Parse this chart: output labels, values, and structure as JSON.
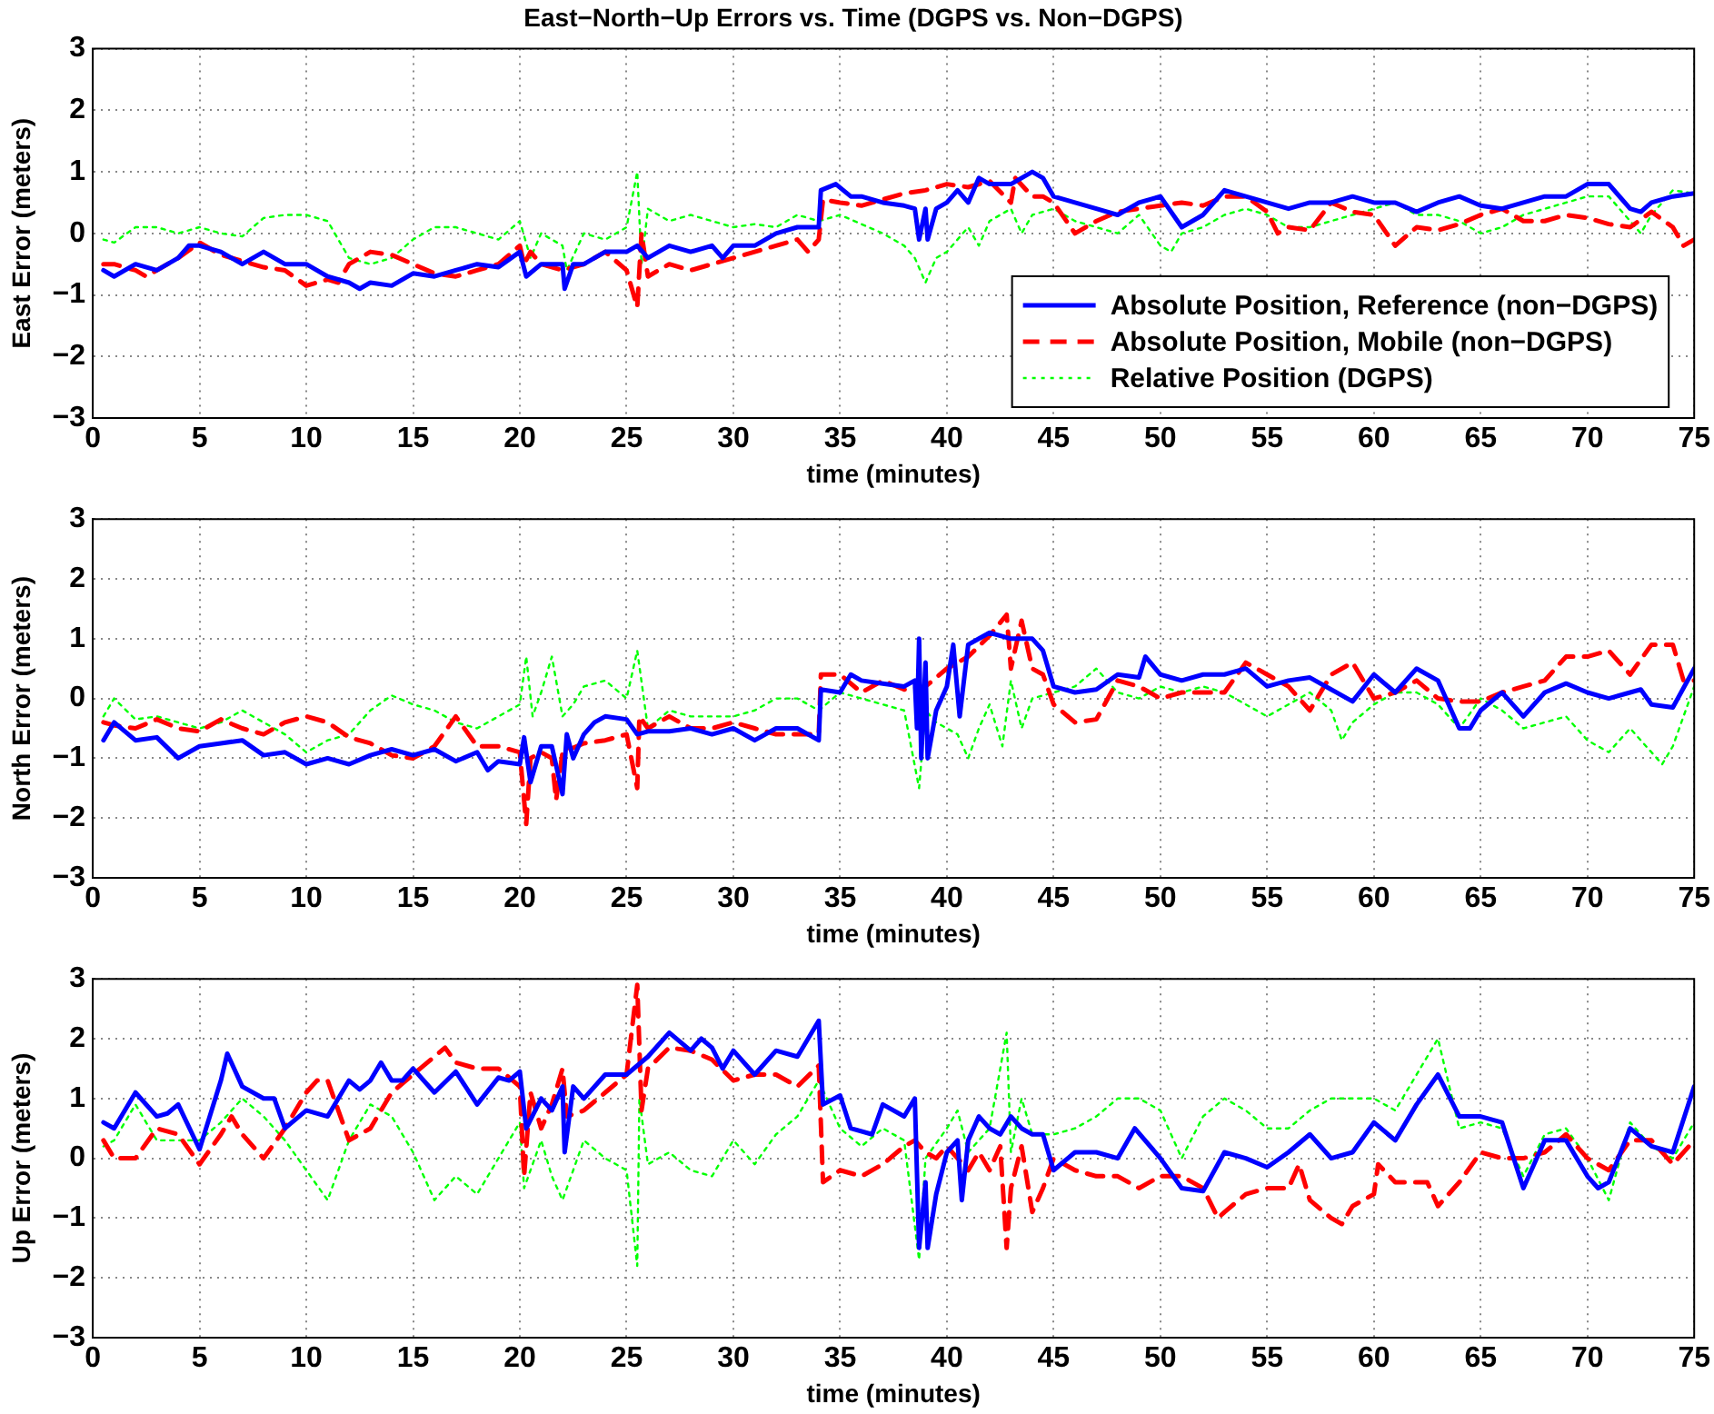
{
  "chart_data": [
    {
      "type": "line",
      "title": "East−North−Up Errors vs. Time (DGPS vs. Non−DGPS)",
      "xlabel": "time (minutes)",
      "ylabel": "East Error (meters)",
      "xlim": [
        0,
        75
      ],
      "xticks": [
        0,
        5,
        10,
        15,
        20,
        25,
        30,
        35,
        40,
        45,
        50,
        55,
        60,
        65,
        70,
        75
      ],
      "ylim": [
        -3,
        3
      ],
      "yticks": [
        -3,
        -2,
        -1,
        0,
        1,
        2,
        3
      ],
      "grid": true,
      "legend": "bottom right",
      "marker": "none",
      "series": [
        {
          "name": "Absolute Position, Reference (non−DGPS)",
          "color": "#0000ff",
          "line_style": "solid",
          "x": [
            0.5,
            1,
            2,
            3,
            4,
            4.5,
            5,
            6,
            7,
            8,
            9,
            10,
            11,
            12,
            12.5,
            13,
            14,
            15,
            16,
            17,
            18,
            19,
            20,
            20.3,
            21,
            22,
            22.1,
            22.5,
            23,
            24,
            25,
            25.5,
            26,
            27,
            28,
            29,
            29.5,
            30,
            31,
            32,
            33,
            34,
            34.1,
            34.8,
            35.5,
            36,
            37,
            38,
            38.5,
            38.7,
            39,
            39.1,
            39.5,
            40,
            40.5,
            41,
            41.5,
            42,
            43,
            44,
            44.5,
            45,
            46,
            47,
            48,
            49,
            50,
            51,
            52,
            53,
            54,
            55,
            56,
            57,
            58,
            59,
            60,
            61,
            62,
            63,
            64,
            65,
            66,
            67,
            68,
            69,
            70,
            71,
            72,
            72.5,
            73,
            74,
            75
          ],
          "values": [
            -0.6,
            -0.7,
            -0.5,
            -0.6,
            -0.4,
            -0.2,
            -0.2,
            -0.3,
            -0.5,
            -0.3,
            -0.5,
            -0.5,
            -0.7,
            -0.8,
            -0.9,
            -0.8,
            -0.85,
            -0.65,
            -0.7,
            -0.6,
            -0.5,
            -0.55,
            -0.3,
            -0.7,
            -0.5,
            -0.5,
            -0.9,
            -0.5,
            -0.5,
            -0.3,
            -0.3,
            -0.2,
            -0.4,
            -0.2,
            -0.3,
            -0.2,
            -0.4,
            -0.2,
            -0.2,
            0,
            0.1,
            0.1,
            0.7,
            0.8,
            0.6,
            0.6,
            0.5,
            0.45,
            0.4,
            -0.1,
            0.4,
            -0.1,
            0.4,
            0.5,
            0.7,
            0.5,
            0.9,
            0.8,
            0.8,
            1.0,
            0.9,
            0.6,
            0.5,
            0.4,
            0.3,
            0.5,
            0.6,
            0.1,
            0.3,
            0.7,
            0.6,
            0.5,
            0.4,
            0.5,
            0.5,
            0.6,
            0.5,
            0.5,
            0.35,
            0.5,
            0.6,
            0.45,
            0.4,
            0.5,
            0.6,
            0.6,
            0.8,
            0.8,
            0.4,
            0.35,
            0.5,
            0.6,
            0.65
          ]
        },
        {
          "name": "Absolute Position, Mobile (non−DGPS)",
          "color": "#ff0000",
          "line_style": "dashed",
          "x": [
            0.5,
            1,
            2,
            2.5,
            3,
            4,
            5,
            6,
            7,
            8,
            9,
            10,
            11,
            11.5,
            12,
            13,
            14,
            15,
            16,
            17,
            18,
            19,
            20,
            20.2,
            20.5,
            21,
            22,
            23,
            24,
            25,
            25.5,
            25.7,
            26,
            27,
            28,
            29,
            30,
            31,
            32,
            33,
            33.5,
            34,
            34.2,
            35,
            36,
            37,
            38,
            39,
            40,
            41,
            42,
            43,
            43.2,
            44,
            44.5,
            45,
            46,
            47,
            48,
            49,
            50,
            51,
            52,
            53,
            54,
            55,
            55.5,
            56,
            57,
            58,
            59,
            60,
            61,
            62,
            63,
            64,
            65,
            66,
            67,
            68,
            69,
            70,
            71,
            72,
            73,
            74,
            74.5,
            75
          ],
          "values": [
            -0.5,
            -0.5,
            -0.6,
            -0.7,
            -0.6,
            -0.4,
            -0.15,
            -0.35,
            -0.45,
            -0.55,
            -0.6,
            -0.85,
            -0.75,
            -0.8,
            -0.5,
            -0.3,
            -0.35,
            -0.5,
            -0.65,
            -0.7,
            -0.6,
            -0.5,
            -0.2,
            -0.5,
            -0.3,
            -0.5,
            -0.6,
            -0.5,
            -0.3,
            -0.6,
            -1.2,
            0,
            -0.7,
            -0.5,
            -0.6,
            -0.5,
            -0.4,
            -0.3,
            -0.2,
            -0.1,
            -0.3,
            -0.1,
            0.55,
            0.5,
            0.45,
            0.55,
            0.65,
            0.7,
            0.8,
            0.75,
            0.85,
            0.5,
            0.9,
            0.6,
            0.6,
            0.5,
            0,
            0.2,
            0.35,
            0.4,
            0.45,
            0.5,
            0.45,
            0.6,
            0.6,
            0.35,
            0,
            0.1,
            0.05,
            0.5,
            0.35,
            0.3,
            -0.2,
            0.1,
            0.05,
            0.15,
            0.3,
            0.4,
            0.2,
            0.2,
            0.3,
            0.25,
            0.15,
            0.1,
            0.35,
            0.1,
            -0.2,
            -0.1
          ]
        },
        {
          "name": "Relative Position (DGPS)",
          "color": "#00ff00",
          "line_style": "dotted",
          "x": [
            0.5,
            1,
            2,
            3,
            4,
            5,
            6,
            7,
            8,
            9,
            10,
            11,
            12,
            13,
            14,
            15,
            16,
            17,
            18,
            19,
            20,
            20.5,
            21,
            22,
            22.2,
            23,
            24,
            25,
            25.5,
            25.7,
            26,
            27,
            28,
            29,
            30,
            31,
            32,
            33,
            34,
            35,
            36,
            37,
            38,
            38.5,
            39,
            39.5,
            40,
            41,
            41.5,
            42,
            43,
            43.5,
            44,
            45,
            46,
            47,
            48,
            49,
            50,
            50.5,
            51,
            52,
            53,
            54,
            55,
            56,
            57,
            58,
            59,
            60,
            61,
            62,
            63,
            64,
            65,
            66,
            67,
            68,
            69,
            70,
            71,
            72,
            72.5,
            73,
            74,
            75
          ],
          "values": [
            -0.1,
            -0.15,
            0.1,
            0.1,
            0,
            0.1,
            0,
            -0.05,
            0.25,
            0.3,
            0.3,
            0.2,
            -0.4,
            -0.5,
            -0.4,
            -0.1,
            0.1,
            0.1,
            0,
            -0.1,
            0.2,
            -0.4,
            0,
            -0.2,
            -0.6,
            0,
            -0.1,
            0.1,
            1.0,
            -0.5,
            0.4,
            0.2,
            0.3,
            0.2,
            0.1,
            0.15,
            0.1,
            0.3,
            0.2,
            0.3,
            0.15,
            0,
            -0.2,
            -0.4,
            -0.8,
            -0.4,
            -0.3,
            0.1,
            -0.2,
            0.2,
            0.4,
            0,
            0.3,
            0.4,
            0.2,
            0.1,
            0,
            0.3,
            -0.2,
            -0.3,
            0,
            0.1,
            0.3,
            0.4,
            0.3,
            0.1,
            0.1,
            0.2,
            0.3,
            0.4,
            0.5,
            0.3,
            0.3,
            0.2,
            0,
            0.1,
            0.3,
            0.4,
            0.5,
            0.6,
            0.6,
            0.2,
            0,
            0.3,
            0.7,
            0.65
          ]
        }
      ]
    },
    {
      "type": "line",
      "xlabel": "time (minutes)",
      "ylabel": "North Error (meters)",
      "xlim": [
        0,
        75
      ],
      "xticks": [
        0,
        5,
        10,
        15,
        20,
        25,
        30,
        35,
        40,
        45,
        50,
        55,
        60,
        65,
        70,
        75
      ],
      "ylim": [
        -3,
        3
      ],
      "yticks": [
        -3,
        -2,
        -1,
        0,
        1,
        2,
        3
      ],
      "grid": true,
      "marker": "none",
      "series": [
        {
          "color": "#0000ff",
          "line_style": "solid",
          "x": [
            0.5,
            1,
            2,
            3,
            4,
            5,
            6,
            7,
            8,
            9,
            10,
            11,
            12,
            13,
            14,
            15,
            16,
            17,
            18,
            18.5,
            19,
            20,
            20.2,
            20.5,
            21,
            21.5,
            22,
            22.2,
            22.5,
            23,
            23.5,
            24,
            25,
            25.5,
            26,
            27,
            28,
            29,
            30,
            31,
            32,
            33,
            34,
            34.1,
            35,
            35.5,
            36,
            37,
            38,
            38.5,
            38.6,
            38.7,
            38.8,
            39,
            39.1,
            39.5,
            40,
            40.3,
            40.6,
            41,
            41.5,
            42,
            43,
            44,
            44.5,
            45,
            46,
            47,
            48,
            49,
            49.3,
            50,
            51,
            52,
            53,
            54,
            55,
            56,
            57,
            58,
            59,
            60,
            61,
            62,
            63,
            64,
            64.5,
            65,
            66,
            67,
            68,
            69,
            70,
            71,
            72,
            72.5,
            73,
            74,
            75
          ],
          "values": [
            -0.7,
            -0.4,
            -0.7,
            -0.65,
            -1.0,
            -0.8,
            -0.75,
            -0.7,
            -0.95,
            -0.9,
            -1.1,
            -1.0,
            -1.1,
            -0.95,
            -0.85,
            -0.95,
            -0.85,
            -1.05,
            -0.9,
            -1.2,
            -1.05,
            -1.1,
            -0.65,
            -1.4,
            -0.8,
            -0.8,
            -1.6,
            -0.6,
            -1.0,
            -0.6,
            -0.4,
            -0.3,
            -0.35,
            -0.6,
            -0.55,
            -0.55,
            -0.5,
            -0.6,
            -0.5,
            -0.7,
            -0.5,
            -0.5,
            -0.7,
            0.15,
            0.1,
            0.4,
            0.3,
            0.25,
            0.2,
            0.3,
            -0.5,
            1.0,
            -1.0,
            0.6,
            -1.0,
            -0.2,
            0.2,
            0.9,
            -0.3,
            0.9,
            1.0,
            1.1,
            1.0,
            1.0,
            0.8,
            0.2,
            0.1,
            0.15,
            0.4,
            0.35,
            0.7,
            0.4,
            0.3,
            0.4,
            0.4,
            0.5,
            0.2,
            0.3,
            0.35,
            0.15,
            -0.05,
            0.4,
            0.1,
            0.5,
            0.3,
            -0.5,
            -0.5,
            -0.2,
            0.1,
            -0.3,
            0.1,
            0.25,
            0.1,
            0,
            0.1,
            0.15,
            -0.1,
            -0.15,
            0.5
          ]
        },
        {
          "color": "#ff0000",
          "line_style": "dashed",
          "x": [
            0.5,
            1,
            2,
            3,
            4,
            5,
            6,
            7,
            8,
            9,
            10,
            11,
            12,
            13,
            14,
            15,
            16,
            17,
            18,
            19,
            20,
            20.3,
            20.5,
            21,
            21.5,
            21.7,
            22,
            23,
            24,
            25,
            25.5,
            25.6,
            26,
            27,
            28,
            29,
            30,
            31,
            32,
            33,
            34,
            34.1,
            35,
            36,
            37,
            38,
            39,
            40,
            41,
            42,
            42.8,
            43,
            43.5,
            44,
            44.5,
            45,
            46,
            47,
            48,
            49,
            50,
            51,
            52,
            53,
            54,
            55,
            56,
            57,
            58,
            59,
            60,
            61,
            62,
            63,
            64,
            65,
            66,
            67,
            68,
            69,
            70,
            71,
            72,
            73,
            74,
            74.5,
            75
          ],
          "values": [
            -0.4,
            -0.45,
            -0.5,
            -0.35,
            -0.5,
            -0.55,
            -0.35,
            -0.5,
            -0.6,
            -0.4,
            -0.3,
            -0.4,
            -0.65,
            -0.75,
            -0.95,
            -1.0,
            -0.8,
            -0.3,
            -0.8,
            -0.8,
            -0.9,
            -2.1,
            -1.0,
            -0.9,
            -1.0,
            -1.7,
            -0.9,
            -0.75,
            -0.7,
            -0.6,
            -1.5,
            -0.3,
            -0.5,
            -0.3,
            -0.5,
            -0.5,
            -0.4,
            -0.5,
            -0.6,
            -0.6,
            -0.6,
            0.4,
            0.4,
            0.1,
            0.3,
            0.15,
            0.2,
            0.5,
            0.7,
            1.05,
            1.4,
            0.5,
            1.3,
            0.5,
            0.4,
            -0.1,
            -0.4,
            -0.35,
            0.3,
            0.2,
            0,
            0.1,
            0.1,
            0.1,
            0.6,
            0.4,
            0.2,
            -0.2,
            0.4,
            0.6,
            0,
            0.1,
            0.3,
            0,
            -0.05,
            -0.05,
            0.1,
            0.2,
            0.3,
            0.7,
            0.7,
            0.8,
            0.4,
            0.9,
            0.9,
            0.3,
            0.3
          ]
        },
        {
          "color": "#00ff00",
          "line_style": "dotted",
          "x": [
            0.5,
            1,
            2,
            3,
            4,
            5,
            6,
            7,
            8,
            9,
            10,
            11,
            12,
            13,
            14,
            15,
            16,
            17,
            18,
            19,
            20,
            20.3,
            20.6,
            21,
            21.5,
            22,
            22.5,
            23,
            24,
            25,
            25.5,
            26,
            27,
            28,
            29,
            30,
            31,
            32,
            33,
            34,
            35,
            36,
            37,
            38,
            38.7,
            39,
            39.5,
            40,
            40.5,
            41,
            41.5,
            42,
            42.6,
            43,
            43.5,
            44,
            45,
            46,
            47,
            48,
            49,
            50,
            51,
            52,
            53,
            54,
            55,
            56,
            57,
            58,
            58.5,
            59,
            60,
            61,
            62,
            63,
            64,
            65,
            66,
            67,
            68,
            69,
            70,
            71,
            72,
            73,
            73.5,
            74,
            75
          ],
          "values": [
            -0.3,
            0,
            -0.35,
            -0.3,
            -0.4,
            -0.5,
            -0.4,
            -0.2,
            -0.4,
            -0.6,
            -0.9,
            -0.7,
            -0.6,
            -0.2,
            0.05,
            -0.1,
            -0.2,
            -0.4,
            -0.5,
            -0.3,
            -0.1,
            0.7,
            -0.3,
            0.1,
            0.7,
            -0.3,
            -0.1,
            0.2,
            0.3,
            0,
            0.8,
            -0.5,
            -0.2,
            -0.3,
            -0.3,
            -0.3,
            -0.2,
            0,
            0,
            -0.2,
            0.1,
            0,
            -0.1,
            -0.2,
            -1.5,
            -0.2,
            -0.4,
            -0.5,
            -0.6,
            -1.0,
            -0.5,
            -0.1,
            -0.8,
            0.3,
            -0.5,
            0,
            0.1,
            0.2,
            0.5,
            0.1,
            0,
            0.2,
            0.1,
            0.2,
            0.1,
            -0.1,
            -0.3,
            -0.1,
            0.1,
            -0.2,
            -0.7,
            -0.4,
            -0.1,
            0.1,
            0.1,
            -0.1,
            -0.5,
            0,
            -0.2,
            -0.5,
            -0.4,
            -0.3,
            -0.7,
            -0.9,
            -0.5,
            -0.9,
            -1.1,
            -0.8,
            0.2
          ]
        }
      ]
    },
    {
      "type": "line",
      "xlabel": "time (minutes)",
      "ylabel": "Up Error (meters)",
      "xlim": [
        0,
        75
      ],
      "xticks": [
        0,
        5,
        10,
        15,
        20,
        25,
        30,
        35,
        40,
        45,
        50,
        55,
        60,
        65,
        70,
        75
      ],
      "ylim": [
        -3,
        3
      ],
      "yticks": [
        -3,
        -2,
        -1,
        0,
        1,
        2,
        3
      ],
      "grid": true,
      "marker": "none",
      "series": [
        {
          "color": "#0000ff",
          "line_style": "solid",
          "x": [
            0.5,
            1,
            2,
            3,
            3.5,
            4,
            5,
            6,
            6.3,
            7,
            8,
            8.5,
            9,
            10,
            11,
            12,
            12.5,
            13,
            13.5,
            14,
            14.5,
            15,
            16,
            17,
            18,
            19,
            19.5,
            20,
            20.3,
            21,
            21.5,
            22,
            22.1,
            22.5,
            23,
            24,
            25,
            26,
            27,
            28,
            28.5,
            29,
            29.5,
            30,
            31,
            32,
            33,
            34,
            34.2,
            35,
            35.5,
            36.5,
            37,
            38,
            38.5,
            38.7,
            39,
            39.1,
            39.5,
            40,
            40.5,
            40.7,
            41,
            41.5,
            42,
            42.5,
            43,
            43.5,
            44,
            44.5,
            45,
            46,
            47,
            48,
            48.8,
            50,
            51,
            52,
            53,
            54,
            55,
            56,
            57,
            58,
            59,
            60,
            61,
            62,
            63,
            64,
            65,
            66,
            67,
            68,
            69,
            70,
            70.5,
            71,
            72,
            73,
            74,
            75
          ],
          "values": [
            0.6,
            0.5,
            1.1,
            0.7,
            0.75,
            0.9,
            0.15,
            1.3,
            1.75,
            1.2,
            1.0,
            1.0,
            0.5,
            0.8,
            0.7,
            1.3,
            1.15,
            1.3,
            1.6,
            1.3,
            1.3,
            1.5,
            1.1,
            1.45,
            0.9,
            1.35,
            1.3,
            1.45,
            0.5,
            1.0,
            0.8,
            1.2,
            0.1,
            1.2,
            1.0,
            1.4,
            1.4,
            1.7,
            2.1,
            1.8,
            2.0,
            1.85,
            1.5,
            1.8,
            1.4,
            1.8,
            1.7,
            2.3,
            0.9,
            1.05,
            0.5,
            0.4,
            0.9,
            0.7,
            1.0,
            -1.5,
            -0.4,
            -1.5,
            -0.6,
            0.1,
            0.3,
            -0.7,
            0.3,
            0.7,
            0.5,
            0.4,
            0.7,
            0.5,
            0.4,
            0.4,
            -0.2,
            0.1,
            0.1,
            0,
            0.5,
            0,
            -0.5,
            -0.55,
            0.1,
            0,
            -0.15,
            0.1,
            0.4,
            0,
            0.1,
            0.6,
            0.3,
            0.9,
            1.4,
            0.7,
            0.7,
            0.6,
            -0.5,
            0.3,
            0.3,
            -0.3,
            -0.5,
            -0.4,
            0.5,
            0.2,
            0.1,
            1.2
          ]
        },
        {
          "color": "#ff0000",
          "line_style": "dashed",
          "x": [
            0.5,
            1,
            2,
            3,
            4,
            5,
            6,
            6.5,
            7,
            8,
            9,
            10,
            10.5,
            11,
            12,
            13,
            14,
            15,
            16,
            16.5,
            17,
            18,
            19,
            20,
            20.2,
            20.5,
            21,
            21.5,
            22,
            22.2,
            23,
            24,
            25,
            25.5,
            25.7,
            26,
            27,
            28,
            29,
            30,
            31,
            32,
            33,
            34,
            34.2,
            35,
            36,
            37,
            38,
            38.5,
            39,
            39.5,
            40,
            40.5,
            41,
            41.5,
            42,
            42.5,
            42.8,
            43,
            43.5,
            44,
            44.5,
            45,
            46,
            47,
            48,
            49,
            50,
            51,
            52,
            52.7,
            53,
            54,
            55,
            56,
            56.5,
            57,
            58,
            58.5,
            59,
            60,
            60.2,
            61,
            62,
            62.5,
            63,
            64,
            65,
            66,
            67,
            68,
            69,
            70,
            71,
            72,
            73,
            74,
            75
          ],
          "values": [
            0.3,
            0,
            0,
            0.5,
            0.4,
            -0.1,
            0.4,
            0.7,
            0.4,
            0,
            0.5,
            1.1,
            1.3,
            1.3,
            0.3,
            0.5,
            1.1,
            1.4,
            1.7,
            1.85,
            1.6,
            1.5,
            1.5,
            1.2,
            -0.3,
            1.1,
            0.5,
            0.9,
            1.5,
            0.7,
            0.8,
            1.1,
            1.4,
            2.9,
            0.8,
            1.5,
            1.85,
            1.8,
            1.65,
            1.3,
            1.4,
            1.4,
            1.2,
            1.55,
            -0.4,
            -0.2,
            -0.3,
            -0.1,
            0.2,
            0.3,
            0.1,
            0,
            0.2,
            0,
            -0.2,
            0.1,
            -0.2,
            0.2,
            -1.5,
            -0.5,
            0.2,
            -0.9,
            -0.5,
            0,
            -0.2,
            -0.3,
            -0.3,
            -0.5,
            -0.3,
            -0.3,
            -0.5,
            -1.0,
            -0.9,
            -0.6,
            -0.5,
            -0.5,
            -0.1,
            -0.7,
            -1.0,
            -1.1,
            -0.8,
            -0.6,
            -0.1,
            -0.4,
            -0.4,
            -0.4,
            -0.8,
            -0.4,
            0.1,
            0,
            0,
            0.1,
            0.4,
            0,
            -0.2,
            0.3,
            0.3,
            -0.1,
            0.3
          ]
        },
        {
          "color": "#00ff00",
          "line_style": "dotted",
          "x": [
            0.5,
            1,
            2,
            3,
            4,
            5,
            6,
            7,
            8,
            9,
            10,
            11,
            12,
            13,
            14,
            15,
            16,
            17,
            18,
            19,
            20,
            20.2,
            21,
            21.5,
            22,
            22.5,
            23,
            24,
            25,
            25.5,
            25.6,
            26,
            27,
            28,
            29,
            30,
            31,
            32,
            33,
            34,
            35,
            36,
            37,
            38,
            38.7,
            39,
            40,
            40.5,
            41,
            42,
            42.8,
            43,
            43.5,
            44,
            45,
            46,
            47,
            48,
            49,
            50,
            51,
            52,
            53,
            54,
            55,
            56,
            57,
            58,
            59,
            60,
            61,
            62,
            63,
            64,
            65,
            66,
            67,
            68,
            69,
            70,
            71,
            72,
            73,
            74,
            75
          ],
          "values": [
            0.2,
            0.3,
            0.9,
            0.3,
            0.3,
            0.3,
            0.6,
            1.0,
            0.7,
            0.3,
            -0.2,
            -0.7,
            0.3,
            0.9,
            0.7,
            0.1,
            -0.7,
            -0.3,
            -0.6,
            0,
            0.6,
            -0.5,
            0.3,
            -0.3,
            -0.7,
            -0.2,
            0.3,
            0,
            -0.2,
            -1.8,
            1.0,
            -0.1,
            0.1,
            -0.2,
            -0.3,
            0.3,
            -0.1,
            0.4,
            0.7,
            1.3,
            0.5,
            0.2,
            0.5,
            0.3,
            -1.7,
            0,
            0.5,
            0.8,
            0.1,
            0.5,
            2.1,
            0.1,
            1.0,
            0.4,
            0.4,
            0.5,
            0.7,
            1.0,
            1.0,
            0.8,
            0,
            0.7,
            1.0,
            0.8,
            0.5,
            0.5,
            0.8,
            1.0,
            1.0,
            1.0,
            0.8,
            1.4,
            2.0,
            0.5,
            0.6,
            0.5,
            -0.3,
            0.4,
            0.5,
            0,
            -0.7,
            0.6,
            0.2,
            0,
            0.6
          ]
        }
      ]
    }
  ]
}
